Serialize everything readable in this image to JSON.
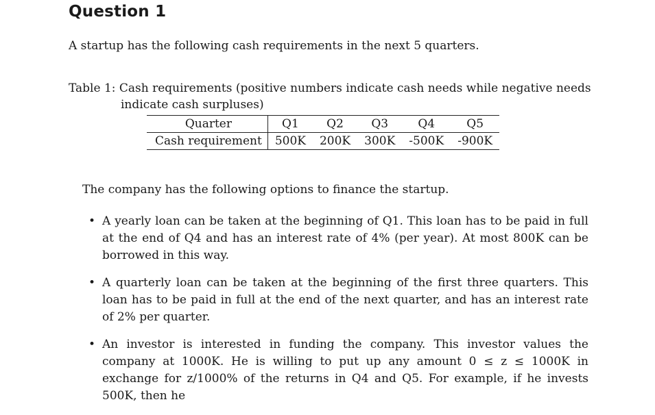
{
  "heading": "Question 1",
  "intro": "A startup has the following cash requirements in the next 5 quarters.",
  "table": {
    "caption_line1": "Table 1: Cash requirements (positive numbers indicate cash needs while negative needs",
    "caption_line2": "indicate cash surpluses)",
    "row_headers": [
      "Quarter",
      "Cash requirement"
    ],
    "quarters": [
      "Q1",
      "Q2",
      "Q3",
      "Q4",
      "Q5"
    ],
    "requirements": [
      "500K",
      "200K",
      "300K",
      "-500K",
      "-900K"
    ]
  },
  "options_intro": "The company has the following options to finance the startup.",
  "bullets": [
    "A yearly loan can be taken at the beginning of Q1. This loan has to be paid in full at the end of Q4 and has an interest rate of 4% (per year). At most 800K can be borrowed in this way.",
    "A quarterly loan can be taken at the beginning of the first three quarters. This loan has to be paid in full at the end of the next quarter, and has an interest rate of 2% per quarter.",
    "An investor is interested in funding the company. This investor values the company at 1000K. He is willing to put up any amount 0 ≤ z ≤ 1000K in exchange for z/1000% of the returns in Q4 and Q5. For example, if he invests 500K, then he"
  ]
}
